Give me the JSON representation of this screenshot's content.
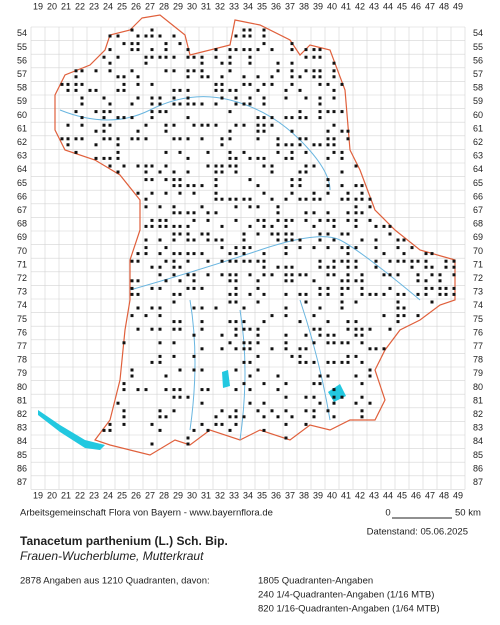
{
  "map": {
    "x_labels": [
      "19",
      "20",
      "21",
      "22",
      "23",
      "24",
      "25",
      "26",
      "27",
      "28",
      "29",
      "30",
      "31",
      "32",
      "33",
      "34",
      "35",
      "36",
      "37",
      "38",
      "39",
      "40",
      "41",
      "42",
      "43",
      "44",
      "45",
      "46",
      "47",
      "48",
      "49"
    ],
    "y_labels": [
      "54",
      "55",
      "56",
      "57",
      "58",
      "59",
      "60",
      "61",
      "62",
      "63",
      "64",
      "65",
      "66",
      "67",
      "68",
      "69",
      "70",
      "71",
      "72",
      "73",
      "74",
      "75",
      "76",
      "77",
      "78",
      "79",
      "80",
      "81",
      "82",
      "83",
      "84",
      "85",
      "86",
      "87"
    ]
  },
  "footer": {
    "credit": "Arbeitsgemeinschaft Flora von Bayern - www.bayernflora.de",
    "scale_start": "0",
    "scale_end": "50 km",
    "date": "Datenstand: 05.06.2025"
  },
  "species": {
    "scientific": "Tanacetum parthenium (L.) Sch. Bip.",
    "common": "Frauen-Wucherblume, Mutterkraut"
  },
  "stats": {
    "summary": "2878 Angaben aus 1210 Quadranten, davon:",
    "breakdown": [
      "1805 Quadranten-Angaben",
      "240 1/4-Quadranten-Angaben (1/16 MTB)",
      "820 1/16-Quadranten-Angaben (1/64 MTB)"
    ]
  }
}
